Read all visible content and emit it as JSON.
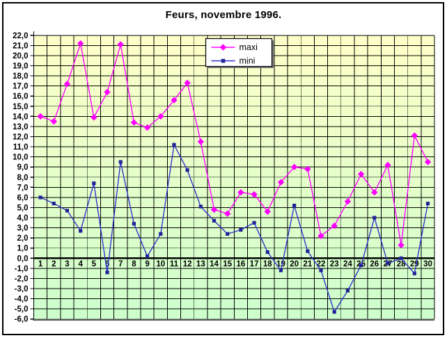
{
  "chart_data": {
    "type": "line",
    "title": "Feurs, novembre 1996.",
    "x": [
      1,
      2,
      3,
      4,
      5,
      6,
      7,
      8,
      9,
      10,
      11,
      12,
      13,
      14,
      15,
      16,
      17,
      18,
      19,
      20,
      21,
      22,
      23,
      24,
      25,
      26,
      27,
      28,
      29,
      30
    ],
    "xtick_labels": [
      "1",
      "2",
      "3",
      "4",
      "5",
      "6",
      "7",
      "8",
      "9",
      "10",
      "11",
      "12",
      "13",
      "14",
      "15",
      "16",
      "17",
      "18",
      "19",
      "20",
      "21",
      "22",
      "23",
      "24",
      "25",
      "26",
      "27",
      "28",
      "29",
      "30"
    ],
    "series": [
      {
        "name": "maxi",
        "color": "#ff00ff",
        "marker": "diamond",
        "marker_color": "#ff00ff",
        "values": [
          14.0,
          13.5,
          17.2,
          21.2,
          13.9,
          16.4,
          21.1,
          13.4,
          12.9,
          14.0,
          15.6,
          17.3,
          11.5,
          4.8,
          4.4,
          6.5,
          6.3,
          4.6,
          7.5,
          9.0,
          8.8,
          2.2,
          3.2,
          5.6,
          8.3,
          6.5,
          9.2,
          1.3,
          12.1,
          9.5
        ]
      },
      {
        "name": "mini",
        "color": "#3333cc",
        "marker": "square",
        "marker_color": "#222299",
        "values": [
          6.0,
          5.4,
          4.7,
          2.7,
          7.4,
          -1.4,
          9.5,
          3.4,
          0.2,
          2.4,
          11.2,
          8.7,
          5.1,
          3.7,
          2.4,
          2.8,
          3.5,
          0.6,
          -1.2,
          5.2,
          0.7,
          -1.2,
          -5.3,
          -3.2,
          -0.7,
          4.0,
          -0.5,
          0.0,
          -1.5,
          5.4
        ]
      }
    ],
    "ylim": [
      -6,
      22
    ],
    "ytick_step": 1.0,
    "ytick_labels": [
      "22,0",
      "21,0",
      "20,0",
      "19,0",
      "18,0",
      "17,0",
      "16,0",
      "15,0",
      "14,0",
      "13,0",
      "12,0",
      "11,0",
      "10,0",
      "9,0",
      "8,0",
      "7,0",
      "6,0",
      "5,0",
      "4,0",
      "3,0",
      "2,0",
      "1,0",
      "0,0",
      "-1,0",
      "-2,0",
      "-3,0",
      "-4,0",
      "-5,0",
      "-6,0"
    ],
    "grid": true,
    "legend": {
      "position": "top-center",
      "entries": [
        "maxi",
        "mini"
      ]
    },
    "background": {
      "top": "#ffffc8",
      "bottom": "#ccffcc"
    },
    "axis_color": "#000000",
    "gridline_color": "#000000"
  }
}
